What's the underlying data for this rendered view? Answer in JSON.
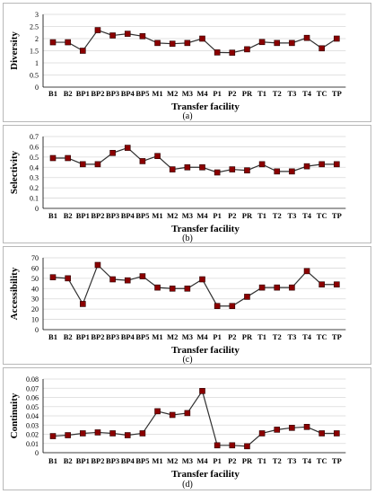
{
  "chart_data": [
    {
      "type": "line",
      "ylabel": "Diversity",
      "xlabel": "Transfer facility",
      "panel_label": "(a)",
      "ylim": [
        0,
        3
      ],
      "yticks": [
        "0",
        "0.5",
        "1",
        "1.5",
        "2",
        "2.5",
        "3"
      ],
      "categories": [
        "B1",
        "B2",
        "BP1",
        "BP2",
        "BP3",
        "BP4",
        "BP5",
        "M1",
        "M2",
        "M3",
        "M4",
        "P1",
        "P2",
        "PR",
        "T1",
        "T2",
        "T3",
        "T4",
        "TC",
        "TP"
      ],
      "values": [
        1.85,
        1.85,
        1.5,
        2.35,
        2.13,
        2.2,
        2.1,
        1.82,
        1.79,
        1.82,
        2.0,
        1.43,
        1.42,
        1.56,
        1.86,
        1.82,
        1.82,
        2.03,
        1.6,
        2.0
      ],
      "grid": true,
      "colors": {
        "marker": "#8b0000",
        "line": "#303030",
        "grid": "#d9d9d9"
      }
    },
    {
      "type": "line",
      "ylabel": "Selectivity",
      "xlabel": "Transfer facility",
      "panel_label": "(b)",
      "ylim": [
        0,
        0.7
      ],
      "yticks": [
        "0",
        "0.1",
        "0.2",
        "0.3",
        "0.4",
        "0.5",
        "0.6",
        "0.7"
      ],
      "categories": [
        "B1",
        "B2",
        "BP1",
        "BP2",
        "BP3",
        "BP4",
        "BP5",
        "M1",
        "M2",
        "M3",
        "M4",
        "P1",
        "P2",
        "PR",
        "T1",
        "T2",
        "T3",
        "T4",
        "TC",
        "TP"
      ],
      "values": [
        0.49,
        0.49,
        0.43,
        0.43,
        0.54,
        0.59,
        0.46,
        0.51,
        0.38,
        0.4,
        0.4,
        0.35,
        0.38,
        0.37,
        0.43,
        0.36,
        0.36,
        0.41,
        0.43,
        0.43
      ],
      "grid": true,
      "colors": {
        "marker": "#8b0000",
        "line": "#303030",
        "grid": "#d9d9d9"
      }
    },
    {
      "type": "line",
      "ylabel": "Accessibility",
      "xlabel": "Transfer facility",
      "panel_label": "(c)",
      "ylim": [
        0,
        70
      ],
      "yticks": [
        "0",
        "10",
        "20",
        "30",
        "40",
        "50",
        "60",
        "70"
      ],
      "categories": [
        "B1",
        "B2",
        "BP1",
        "BP2",
        "BP3",
        "BP4",
        "BP5",
        "M1",
        "M2",
        "M3",
        "M4",
        "P1",
        "P2",
        "PR",
        "T1",
        "T2",
        "T3",
        "T4",
        "TC",
        "TP"
      ],
      "values": [
        51,
        50,
        25,
        63,
        49,
        48,
        52,
        41,
        40,
        40,
        49,
        23,
        23,
        32,
        41,
        41,
        41,
        57,
        44,
        44
      ],
      "grid": true,
      "colors": {
        "marker": "#8b0000",
        "line": "#303030",
        "grid": "#d9d9d9"
      }
    },
    {
      "type": "line",
      "ylabel": "Continuity",
      "xlabel": "Transfer facility",
      "panel_label": "(d)",
      "ylim": [
        0,
        0.08
      ],
      "yticks": [
        "0",
        "0.01",
        "0.02",
        "0.03",
        "0.04",
        "0.05",
        "0.06",
        "0.07",
        "0.08"
      ],
      "categories": [
        "B1",
        "B2",
        "BP1",
        "BP2",
        "BP3",
        "BP4",
        "BP5",
        "M1",
        "M2",
        "M3",
        "M4",
        "P1",
        "P2",
        "PR",
        "T1",
        "T2",
        "T3",
        "T4",
        "TC",
        "TP"
      ],
      "values": [
        0.018,
        0.019,
        0.021,
        0.022,
        0.021,
        0.019,
        0.021,
        0.045,
        0.041,
        0.043,
        0.067,
        0.008,
        0.008,
        0.007,
        0.021,
        0.025,
        0.027,
        0.028,
        0.021,
        0.021
      ],
      "grid": true,
      "colors": {
        "marker": "#8b0000",
        "line": "#303030",
        "grid": "#d9d9d9"
      }
    }
  ]
}
